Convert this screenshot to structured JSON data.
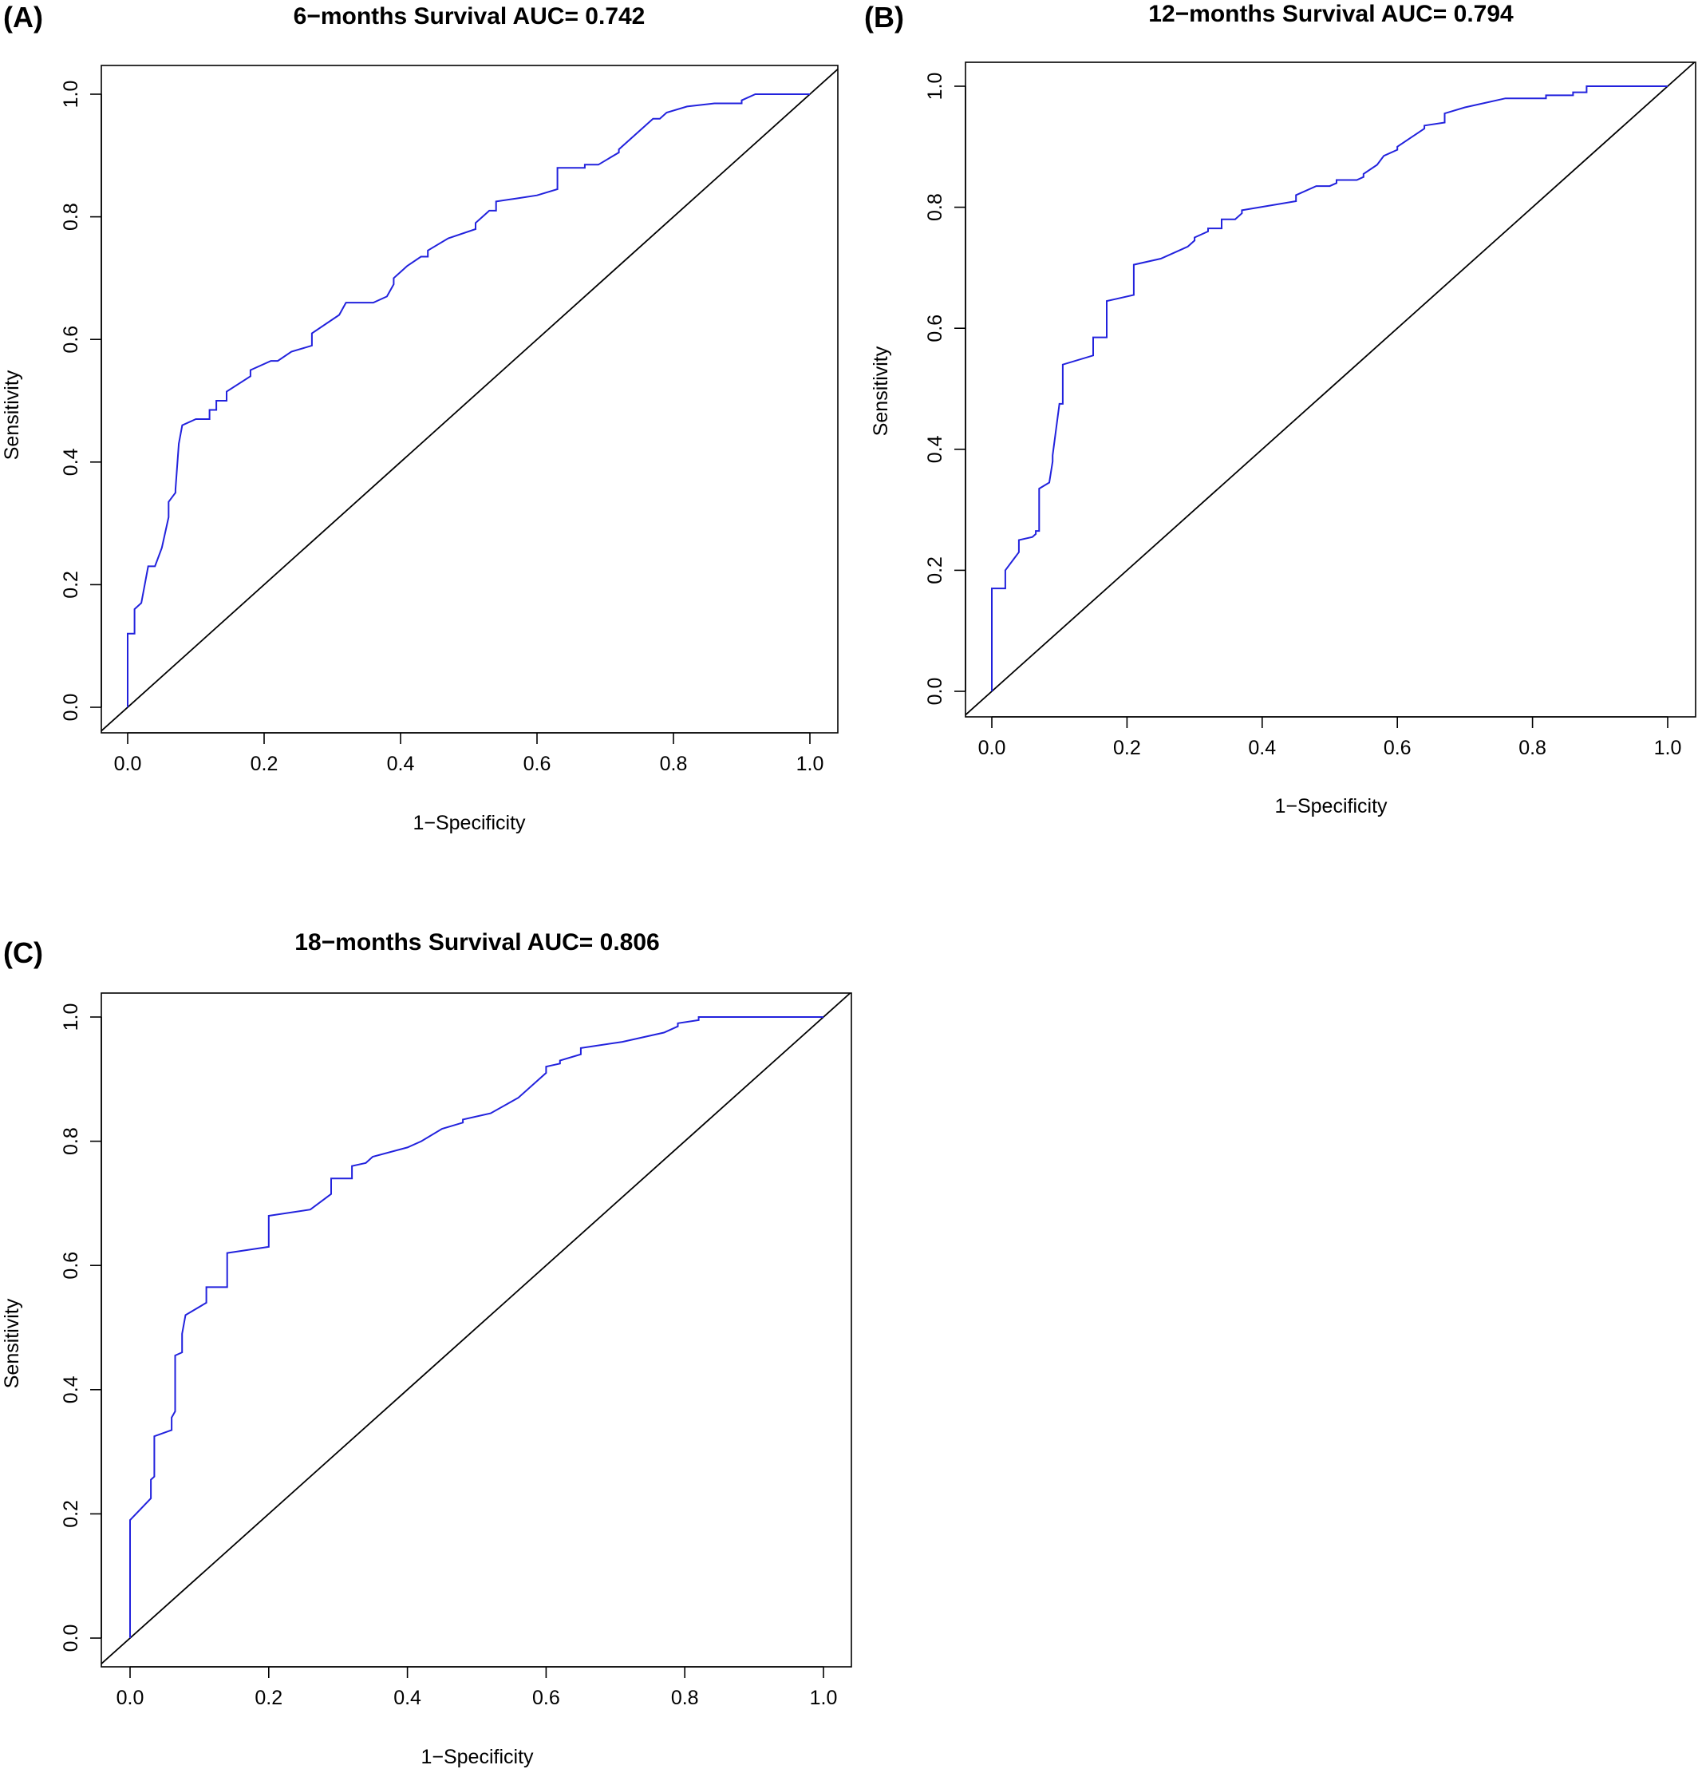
{
  "chart_data": [
    {
      "type": "line",
      "panel": "(A)",
      "title": "6−months Survival AUC= 0.742",
      "xlabel": "1−Specificity",
      "ylabel": "Sensitivity",
      "xlim": [
        0,
        1
      ],
      "ylim": [
        0,
        1
      ],
      "xticks": [
        "0.0",
        "0.2",
        "0.4",
        "0.6",
        "0.8",
        "1.0"
      ],
      "yticks": [
        "0.0",
        "0.2",
        "0.4",
        "0.6",
        "0.8",
        "1.0"
      ],
      "colors": {
        "roc": "#2222dd",
        "reference": "#000000"
      },
      "series": [
        {
          "x": [
            0,
            0,
            0.01,
            0.01,
            0.02,
            0.03,
            0.04,
            0.05,
            0.06,
            0.06,
            0.07,
            0.07,
            0.075,
            0.08,
            0.1,
            0.12,
            0.12,
            0.13,
            0.13,
            0.145,
            0.145,
            0.18,
            0.18,
            0.21,
            0.22,
            0.24,
            0.27,
            0.27,
            0.31,
            0.32,
            0.36,
            0.38,
            0.39,
            0.39,
            0.41,
            0.43,
            0.44,
            0.44,
            0.47,
            0.51,
            0.51,
            0.52,
            0.53,
            0.54,
            0.54,
            0.57,
            0.6,
            0.63,
            0.63,
            0.67,
            0.67,
            0.69,
            0.72,
            0.72,
            0.77,
            0.78,
            0.79,
            0.82,
            0.86,
            0.9,
            0.9,
            0.92,
            1.0
          ],
          "y": [
            0,
            0.12,
            0.12,
            0.16,
            0.17,
            0.23,
            0.23,
            0.26,
            0.31,
            0.335,
            0.35,
            0.355,
            0.43,
            0.46,
            0.47,
            0.47,
            0.485,
            0.485,
            0.5,
            0.5,
            0.515,
            0.54,
            0.55,
            0.565,
            0.565,
            0.58,
            0.59,
            0.61,
            0.64,
            0.66,
            0.66,
            0.67,
            0.69,
            0.7,
            0.72,
            0.735,
            0.735,
            0.745,
            0.765,
            0.78,
            0.79,
            0.8,
            0.81,
            0.81,
            0.825,
            0.83,
            0.835,
            0.845,
            0.88,
            0.88,
            0.885,
            0.885,
            0.905,
            0.91,
            0.96,
            0.96,
            0.97,
            0.98,
            0.985,
            0.985,
            0.99,
            1.0,
            1.0
          ]
        }
      ]
    },
    {
      "type": "line",
      "panel": "(B)",
      "title": "12−months Survival AUC= 0.794",
      "xlabel": "1−Specificity",
      "ylabel": "Sensitivity",
      "xlim": [
        0,
        1
      ],
      "ylim": [
        0,
        1
      ],
      "xticks": [
        "0.0",
        "0.2",
        "0.4",
        "0.6",
        "0.8",
        "1.0"
      ],
      "yticks": [
        "0.0",
        "0.2",
        "0.4",
        "0.6",
        "0.8",
        "1.0"
      ],
      "colors": {
        "roc": "#2222dd",
        "reference": "#000000"
      },
      "series": [
        {
          "x": [
            0,
            0,
            0.02,
            0.02,
            0.04,
            0.04,
            0.06,
            0.065,
            0.065,
            0.07,
            0.07,
            0.085,
            0.09,
            0.09,
            0.1,
            0.105,
            0.105,
            0.15,
            0.15,
            0.17,
            0.17,
            0.21,
            0.21,
            0.25,
            0.28,
            0.29,
            0.3,
            0.3,
            0.32,
            0.32,
            0.34,
            0.34,
            0.36,
            0.37,
            0.37,
            0.45,
            0.45,
            0.48,
            0.5,
            0.51,
            0.51,
            0.53,
            0.54,
            0.55,
            0.55,
            0.57,
            0.58,
            0.6,
            0.6,
            0.62,
            0.64,
            0.64,
            0.67,
            0.67,
            0.7,
            0.76,
            0.82,
            0.82,
            0.86,
            0.86,
            0.88,
            0.88,
            1.0
          ],
          "y": [
            0,
            0.17,
            0.17,
            0.2,
            0.23,
            0.25,
            0.255,
            0.26,
            0.265,
            0.265,
            0.335,
            0.345,
            0.38,
            0.39,
            0.475,
            0.475,
            0.54,
            0.555,
            0.585,
            0.585,
            0.645,
            0.655,
            0.705,
            0.715,
            0.73,
            0.735,
            0.745,
            0.75,
            0.76,
            0.765,
            0.765,
            0.78,
            0.78,
            0.79,
            0.795,
            0.81,
            0.82,
            0.835,
            0.835,
            0.84,
            0.845,
            0.845,
            0.845,
            0.85,
            0.855,
            0.87,
            0.885,
            0.895,
            0.9,
            0.915,
            0.93,
            0.935,
            0.94,
            0.955,
            0.965,
            0.98,
            0.98,
            0.985,
            0.985,
            0.99,
            0.99,
            1.0,
            1.0
          ]
        }
      ]
    },
    {
      "type": "line",
      "panel": "(C)",
      "title": "18−months Survival AUC= 0.806",
      "xlabel": "1−Specificity",
      "ylabel": "Sensitivity",
      "xlim": [
        0,
        1
      ],
      "ylim": [
        0,
        1
      ],
      "xticks": [
        "0.0",
        "0.2",
        "0.4",
        "0.6",
        "0.8",
        "1.0"
      ],
      "yticks": [
        "0.0",
        "0.2",
        "0.4",
        "0.6",
        "0.8",
        "1.0"
      ],
      "colors": {
        "roc": "#2222dd",
        "reference": "#000000"
      },
      "series": [
        {
          "x": [
            0,
            0,
            0.03,
            0.03,
            0.035,
            0.035,
            0.06,
            0.06,
            0.065,
            0.065,
            0.075,
            0.075,
            0.08,
            0.11,
            0.11,
            0.14,
            0.14,
            0.2,
            0.2,
            0.26,
            0.29,
            0.29,
            0.32,
            0.32,
            0.34,
            0.35,
            0.4,
            0.42,
            0.45,
            0.45,
            0.48,
            0.48,
            0.52,
            0.56,
            0.6,
            0.6,
            0.62,
            0.62,
            0.65,
            0.65,
            0.71,
            0.77,
            0.77,
            0.79,
            0.79,
            0.82,
            0.82,
            1.0
          ],
          "y": [
            0,
            0.19,
            0.225,
            0.255,
            0.26,
            0.325,
            0.335,
            0.355,
            0.365,
            0.455,
            0.46,
            0.49,
            0.52,
            0.54,
            0.565,
            0.565,
            0.62,
            0.63,
            0.68,
            0.69,
            0.715,
            0.74,
            0.74,
            0.76,
            0.765,
            0.775,
            0.79,
            0.8,
            0.82,
            0.82,
            0.83,
            0.835,
            0.845,
            0.87,
            0.91,
            0.92,
            0.925,
            0.93,
            0.94,
            0.95,
            0.96,
            0.975,
            0.975,
            0.985,
            0.99,
            0.995,
            1.0,
            1.0
          ]
        }
      ]
    }
  ]
}
